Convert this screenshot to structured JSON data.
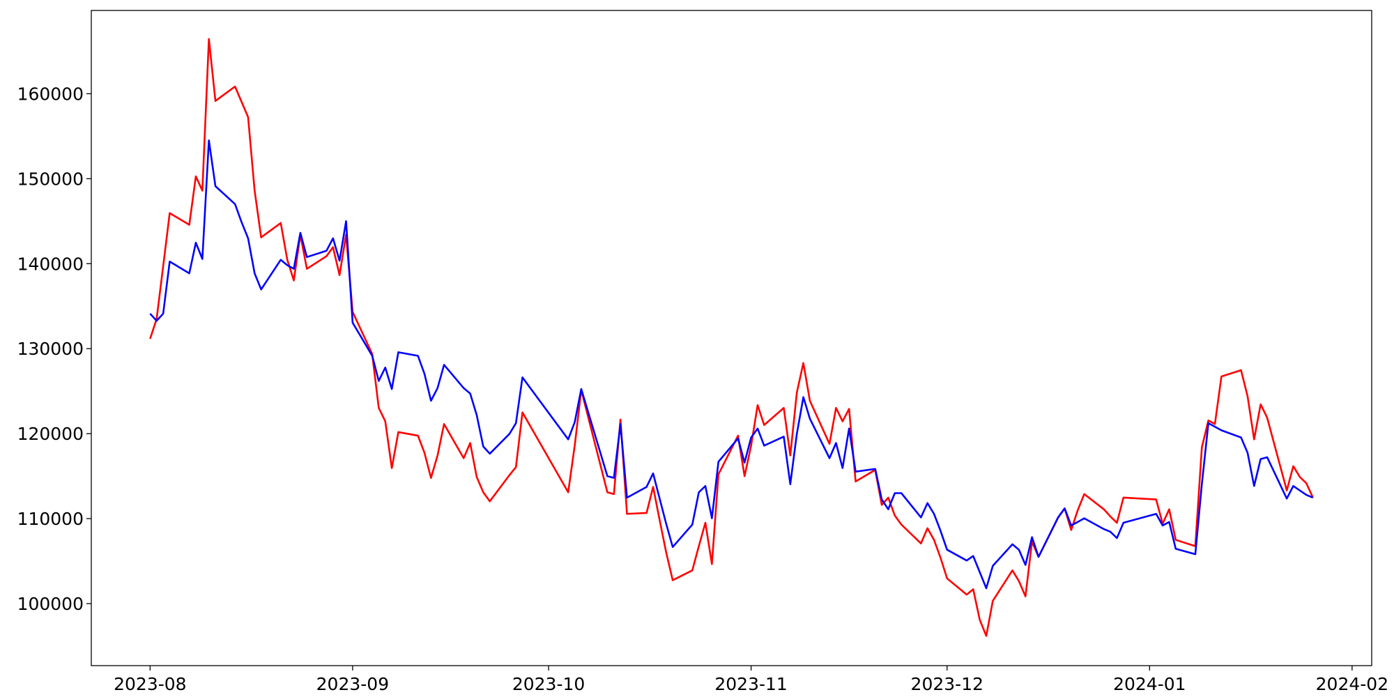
{
  "chart_data": {
    "type": "line",
    "x": [
      "2023-08-01",
      "2023-08-02",
      "2023-08-03",
      "2023-08-04",
      "2023-08-07",
      "2023-08-08",
      "2023-08-09",
      "2023-08-10",
      "2023-08-11",
      "2023-08-14",
      "2023-08-15",
      "2023-08-16",
      "2023-08-17",
      "2023-08-18",
      "2023-08-21",
      "2023-08-22",
      "2023-08-23",
      "2023-08-24",
      "2023-08-25",
      "2023-08-28",
      "2023-08-29",
      "2023-08-30",
      "2023-08-31",
      "2023-09-01",
      "2023-09-04",
      "2023-09-05",
      "2023-09-06",
      "2023-09-07",
      "2023-09-08",
      "2023-09-11",
      "2023-09-12",
      "2023-09-13",
      "2023-09-14",
      "2023-09-15",
      "2023-09-18",
      "2023-09-19",
      "2023-09-20",
      "2023-09-21",
      "2023-09-22",
      "2023-09-25",
      "2023-09-26",
      "2023-09-27",
      "2023-10-04",
      "2023-10-05",
      "2023-10-06",
      "2023-10-10",
      "2023-10-11",
      "2023-10-12",
      "2023-10-13",
      "2023-10-16",
      "2023-10-17",
      "2023-10-18",
      "2023-10-19",
      "2023-10-20",
      "2023-10-23",
      "2023-10-24",
      "2023-10-25",
      "2023-10-26",
      "2023-10-27",
      "2023-10-30",
      "2023-10-31",
      "2023-11-01",
      "2023-11-02",
      "2023-11-03",
      "2023-11-06",
      "2023-11-07",
      "2023-11-08",
      "2023-11-09",
      "2023-11-10",
      "2023-11-13",
      "2023-11-14",
      "2023-11-15",
      "2023-11-16",
      "2023-11-17",
      "2023-11-20",
      "2023-11-21",
      "2023-11-22",
      "2023-11-23",
      "2023-11-24",
      "2023-11-27",
      "2023-11-28",
      "2023-11-29",
      "2023-11-30",
      "2023-12-01",
      "2023-12-04",
      "2023-12-05",
      "2023-12-06",
      "2023-12-07",
      "2023-12-08",
      "2023-12-11",
      "2023-12-12",
      "2023-12-13",
      "2023-12-14",
      "2023-12-15",
      "2023-12-18",
      "2023-12-19",
      "2023-12-20",
      "2023-12-21",
      "2023-12-22",
      "2023-12-25",
      "2023-12-26",
      "2023-12-27",
      "2023-12-28",
      "2024-01-02",
      "2024-01-03",
      "2024-01-04",
      "2024-01-05",
      "2024-01-08",
      "2024-01-09",
      "2024-01-10",
      "2024-01-11",
      "2024-01-12",
      "2024-01-15",
      "2024-01-16",
      "2024-01-17",
      "2024-01-18",
      "2024-01-19",
      "2024-01-22",
      "2024-01-23",
      "2024-01-24",
      "2024-01-25",
      "2024-01-26"
    ],
    "series": [
      {
        "color": "#ff0000",
        "values": [
          131160,
          133500,
          139700,
          145950,
          144580,
          150280,
          148600,
          166440,
          159150,
          160850,
          159050,
          157250,
          148600,
          143100,
          144790,
          140460,
          138030,
          143420,
          139400,
          140880,
          141940,
          138660,
          143420,
          134330,
          129370,
          123030,
          121450,
          115950,
          120180,
          119760,
          117750,
          114790,
          117430,
          121130,
          117110,
          118900,
          114900,
          113100,
          112040,
          115110,
          116060,
          122500,
          113100,
          118590,
          125140,
          113100,
          112890,
          121660,
          110560,
          110670,
          113730,
          109830,
          106020,
          102750,
          103910,
          106760,
          109510,
          104650,
          115210,
          119760,
          115000,
          118590,
          123350,
          121020,
          123030,
          117430,
          124830,
          128310,
          123870,
          118800,
          123030,
          121450,
          122920,
          114370,
          115740,
          111620,
          112470,
          110360,
          109300,
          107080,
          108870,
          107500,
          105390,
          102960,
          101060,
          101690,
          98100,
          96200,
          100320,
          103910,
          102640,
          100850,
          107290,
          105500,
          110140,
          111200,
          108660,
          110990,
          112890,
          111100,
          110250,
          109510,
          112470,
          112260,
          109400,
          111100,
          107500,
          106760,
          118380,
          121550,
          121130,
          126730,
          127470,
          124400,
          119330,
          123450,
          121870,
          113310,
          116170,
          114900,
          114160,
          112470
        ]
      },
      {
        "color": "#0000ff",
        "values": [
          134120,
          133280,
          134120,
          140250,
          138870,
          142470,
          140560,
          154510,
          149120,
          147010,
          144890,
          142990,
          138870,
          136970,
          140460,
          139820,
          139400,
          143630,
          140780,
          141520,
          142990,
          140350,
          145000,
          133060,
          129160,
          126200,
          127780,
          125250,
          129580,
          129160,
          127040,
          123870,
          125360,
          128100,
          125360,
          124720,
          122180,
          118490,
          117640,
          119970,
          121230,
          126620,
          119330,
          121340,
          125250,
          115000,
          114790,
          121130,
          112470,
          113730,
          115320,
          112360,
          109400,
          106660,
          109300,
          113100,
          113840,
          110040,
          116690,
          119440,
          116590,
          119540,
          120600,
          118590,
          119650,
          114050,
          119970,
          124300,
          121760,
          117110,
          118900,
          115950,
          120600,
          115530,
          115850,
          112260,
          111100,
          113000,
          113000,
          110140,
          111830,
          110560,
          108560,
          106340,
          105070,
          105600,
          103700,
          101800,
          104440,
          106980,
          106340,
          104550,
          107820,
          105500,
          110140,
          111200,
          109190,
          109610,
          110040,
          108770,
          108450,
          107710,
          109510,
          110560,
          109190,
          109610,
          106450,
          105810,
          114050,
          121230,
          120810,
          120390,
          119550,
          117750,
          113840,
          117010,
          117220,
          112360,
          113840,
          113310,
          112790,
          112470
        ]
      }
    ],
    "xlim": [
      "2023-07-23",
      "2024-02-04"
    ],
    "xticks": [
      "2023-08",
      "2023-09",
      "2023-10",
      "2023-11",
      "2023-12",
      "2024-01",
      "2024-02"
    ],
    "ylim": [
      92700,
      169800
    ],
    "yticks": [
      100000,
      110000,
      120000,
      130000,
      140000,
      150000,
      160000
    ],
    "grid": false
  }
}
